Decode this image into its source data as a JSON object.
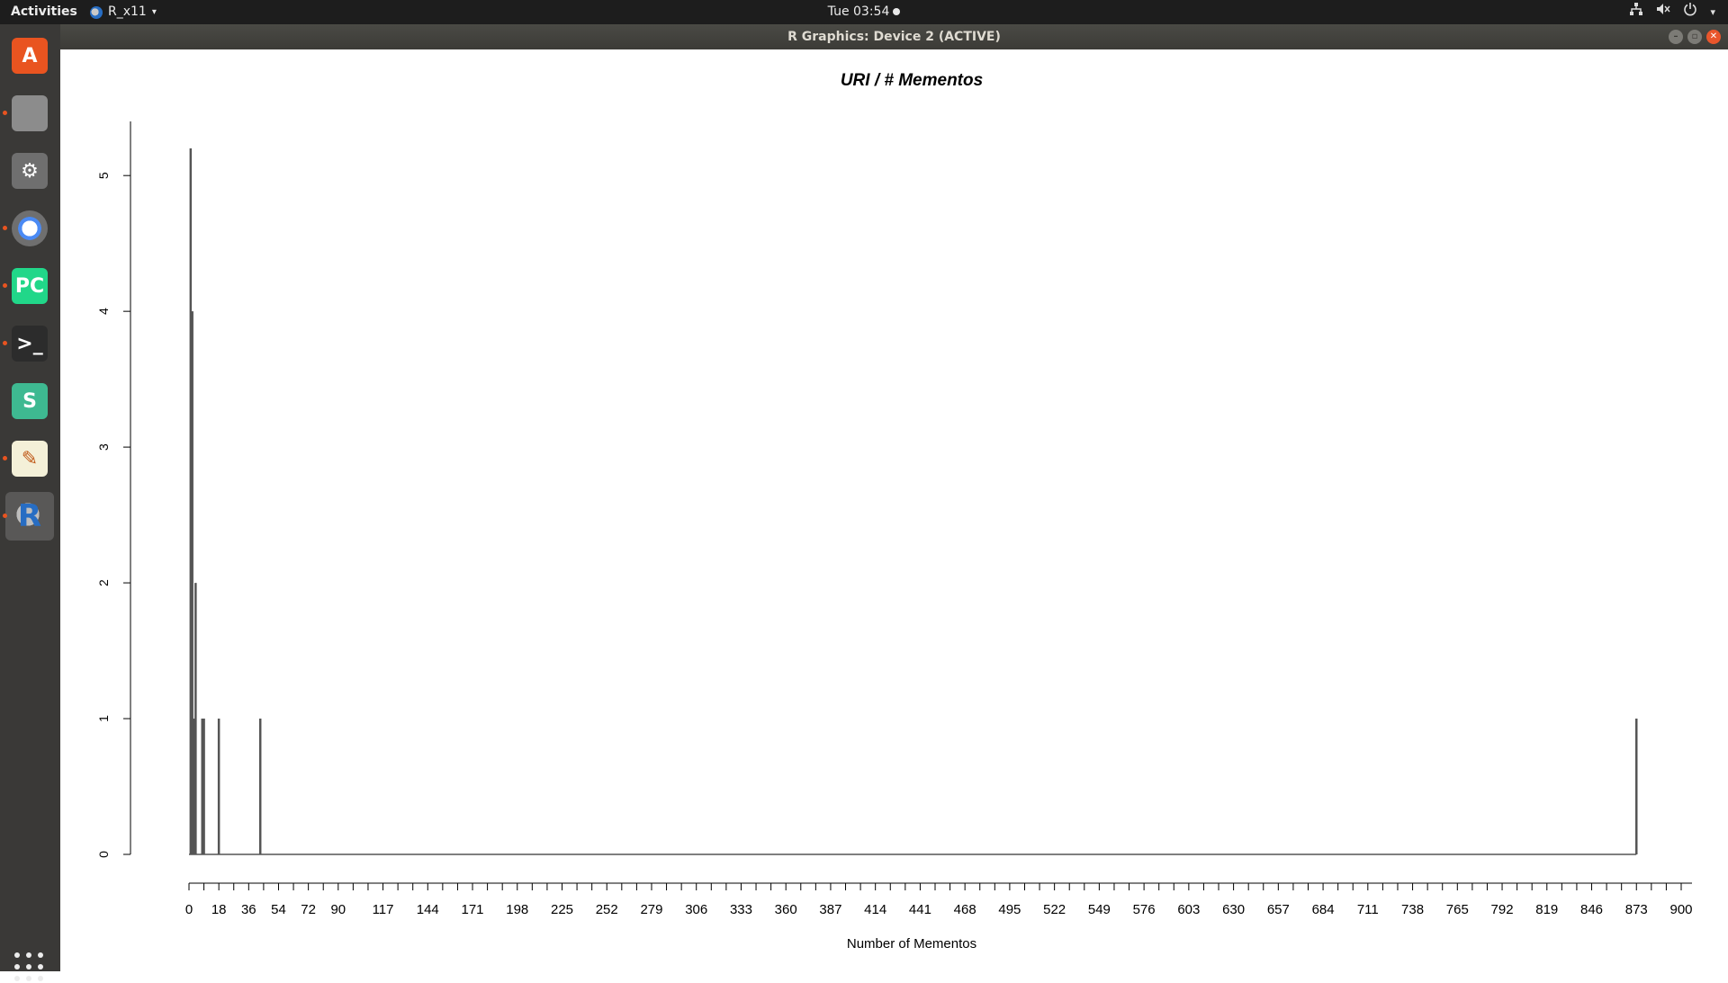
{
  "topbar": {
    "activities": "Activities",
    "app_name": "R_x11",
    "clock": "Tue 03:54",
    "icons": [
      "network-icon",
      "volume-icon",
      "power-icon",
      "system-menu-caret-icon"
    ]
  },
  "window": {
    "title": "R Graphics: Device 2 (ACTIVE)"
  },
  "dock": {
    "items": [
      {
        "name": "ubuntu-software",
        "glyph": "A",
        "color": "#e95420",
        "running": false
      },
      {
        "name": "files",
        "glyph": "",
        "color": "#8c8c8c",
        "running": true
      },
      {
        "name": "system-settings",
        "glyph": "⚙",
        "color": "#6f6f6f",
        "running": false
      },
      {
        "name": "chromium",
        "glyph": "",
        "color": "#4a8af4",
        "running": true
      },
      {
        "name": "pycharm",
        "glyph": "PC",
        "color": "#21d789",
        "running": true
      },
      {
        "name": "terminal",
        "glyph": ">_",
        "color": "#2c2c2c",
        "running": true
      },
      {
        "name": "slack",
        "glyph": "S",
        "color": "#3eb991",
        "running": false
      },
      {
        "name": "text-editor",
        "glyph": "✎",
        "color": "#f4f0d8",
        "running": true
      },
      {
        "name": "r",
        "glyph": "R",
        "color": "#276dc3",
        "running": true,
        "active": true
      }
    ]
  },
  "chart_data": {
    "type": "bar",
    "title": "URI / # Mementos",
    "xlabel": "Number of Mementos",
    "ylabel": "",
    "xlim": [
      0,
      900
    ],
    "ylim": [
      0,
      5.2
    ],
    "x_ticks": [
      0,
      18,
      36,
      54,
      72,
      90,
      117,
      144,
      171,
      198,
      225,
      252,
      279,
      306,
      333,
      360,
      387,
      414,
      441,
      468,
      495,
      522,
      549,
      576,
      603,
      630,
      657,
      684,
      711,
      738,
      765,
      792,
      819,
      846,
      873,
      900
    ],
    "y_ticks": [
      0,
      1,
      2,
      3,
      4,
      5
    ],
    "x": [
      1,
      2,
      3,
      4,
      8,
      9,
      18,
      43,
      873
    ],
    "values": [
      5.2,
      4,
      1,
      2,
      1,
      1,
      1,
      1,
      1
    ],
    "grid": false,
    "legend": "none"
  }
}
